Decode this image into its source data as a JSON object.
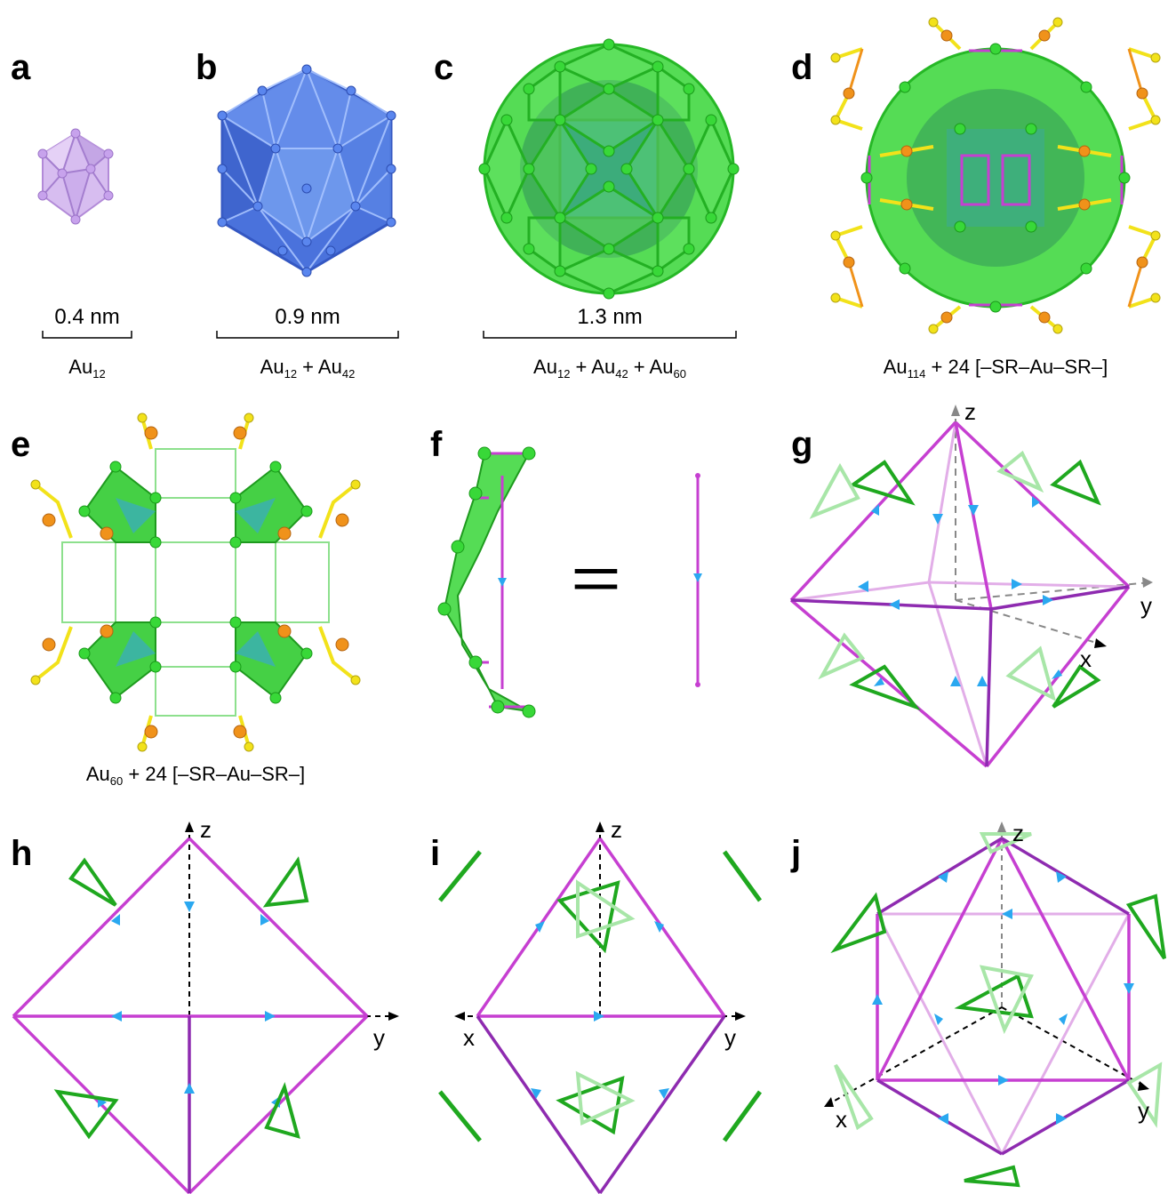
{
  "panels": {
    "a": {
      "letter": "a",
      "caption_base": "Au",
      "caption_sub": "12",
      "scale": "0.4 nm"
    },
    "b": {
      "letter": "b",
      "caption_parts": [
        "Au",
        "12",
        " + Au",
        "42"
      ],
      "scale": "0.9 nm"
    },
    "c": {
      "letter": "c",
      "caption_parts": [
        "Au",
        "12",
        " + Au",
        "42",
        " + Au",
        "60"
      ],
      "scale": "1.3 nm"
    },
    "d": {
      "letter": "d",
      "caption_parts": [
        "Au",
        "114",
        " + 24 [–SR–Au–SR–]"
      ]
    },
    "e": {
      "letter": "e",
      "caption_parts": [
        "Au",
        "60",
        " + 24 [–SR–Au–SR–]"
      ]
    },
    "f": {
      "letter": "f",
      "equals": "="
    },
    "g": {
      "letter": "g",
      "axes": {
        "z": "z",
        "y": "y",
        "x": "x"
      }
    },
    "h": {
      "letter": "h",
      "axes": {
        "z": "z",
        "y": "y"
      }
    },
    "i": {
      "letter": "i",
      "axes": {
        "z": "z",
        "y": "y",
        "x": "x"
      }
    },
    "j": {
      "letter": "j",
      "axes": {
        "z": "z",
        "y": "y",
        "x": "x"
      }
    }
  },
  "colors": {
    "au12": "#c9a6e8",
    "au42": "#4a6fd8",
    "au60": "#3ad43a",
    "sulfur": "#f2e21a",
    "au_staple": "#f0921a",
    "edge": "#c63fd1",
    "edge_dark": "#8e2bb0",
    "arrow": "#2aa8f0"
  }
}
